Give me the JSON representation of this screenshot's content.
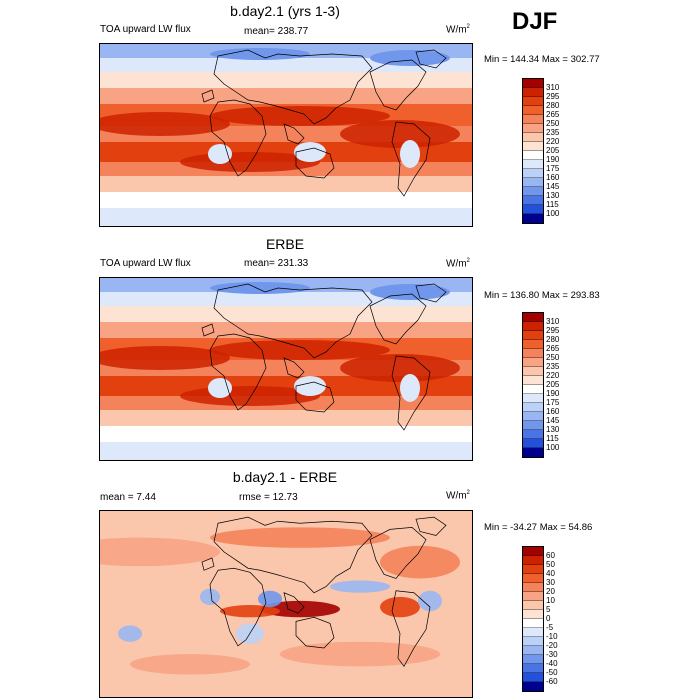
{
  "season": "DJF",
  "panels": [
    {
      "title": "b.day2.1 (yrs 1-3)",
      "left_label": "TOA upward LW flux",
      "center_label": "mean= 238.77",
      "units": "W/m",
      "units_exp": "2",
      "minmax": "Min = 144.34 Max = 302.77",
      "colorbar_labels": [
        "310",
        "295",
        "280",
        "265",
        "250",
        "235",
        "220",
        "205",
        "190",
        "175",
        "160",
        "145",
        "130",
        "115",
        "100"
      ],
      "colorbar_colors": [
        "#a30000",
        "#cc2200",
        "#e34010",
        "#f0602c",
        "#f4825a",
        "#f7a384",
        "#fac6ac",
        "#fde3d4",
        "#ffffff",
        "#dde8fb",
        "#bcd1f7",
        "#99b6f2",
        "#7097ec",
        "#4a74e4",
        "#2350dd",
        "#00008f"
      ],
      "scale": "abs"
    },
    {
      "title": "ERBE",
      "left_label": "TOA upward LW flux",
      "center_label": "mean= 231.33",
      "units": "W/m",
      "units_exp": "2",
      "minmax": "Min = 136.80 Max = 293.83",
      "colorbar_labels": [
        "310",
        "295",
        "280",
        "265",
        "250",
        "235",
        "220",
        "205",
        "190",
        "175",
        "160",
        "145",
        "130",
        "115",
        "100"
      ],
      "colorbar_colors": [
        "#a30000",
        "#cc2200",
        "#e34010",
        "#f0602c",
        "#f4825a",
        "#f7a384",
        "#fac6ac",
        "#fde3d4",
        "#ffffff",
        "#dde8fb",
        "#bcd1f7",
        "#99b6f2",
        "#7097ec",
        "#4a74e4",
        "#2350dd",
        "#00008f"
      ],
      "scale": "abs"
    },
    {
      "title": "b.day2.1 - ERBE",
      "left_label": "mean =   7.44",
      "center_label": "rmse =  12.73",
      "units": "W/m",
      "units_exp": "2",
      "minmax": "Min = -34.27 Max =  54.86",
      "colorbar_labels": [
        "60",
        "50",
        "40",
        "30",
        "20",
        "10",
        "5",
        "0",
        "-5",
        "-10",
        "-20",
        "-30",
        "-40",
        "-50",
        "-60"
      ],
      "colorbar_colors": [
        "#a30000",
        "#cc2200",
        "#e34010",
        "#f0602c",
        "#f4825a",
        "#f7a384",
        "#fac6ac",
        "#fde3d4",
        "#ffffff",
        "#dde8fb",
        "#bcd1f7",
        "#99b6f2",
        "#7097ec",
        "#4a74e4",
        "#2350dd",
        "#00008f"
      ],
      "scale": "diff"
    }
  ]
}
